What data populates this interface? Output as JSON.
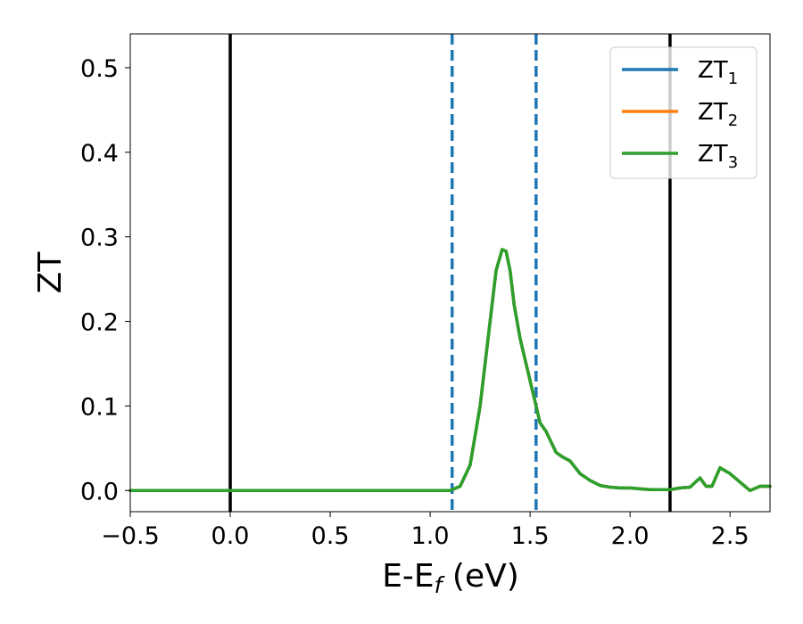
{
  "chart_data": {
    "type": "line",
    "xlabel": "E-E",
    "xlabel_sub": "f",
    "xlabel_unit": " (eV)",
    "ylabel": "ZT",
    "xlim": [
      -0.5,
      2.7
    ],
    "ylim": [
      -0.025,
      0.54
    ],
    "grid": false,
    "legend_position": "top-right",
    "xticks": [
      -0.5,
      0.0,
      0.5,
      1.0,
      1.5,
      2.0,
      2.5
    ],
    "xtick_labels": [
      "−0.5",
      "0.0",
      "0.5",
      "1.0",
      "1.5",
      "2.0",
      "2.5"
    ],
    "yticks": [
      0.0,
      0.1,
      0.2,
      0.3,
      0.4,
      0.5
    ],
    "ytick_labels": [
      "0.0",
      "0.1",
      "0.2",
      "0.3",
      "0.4",
      "0.5"
    ],
    "vlines": [
      {
        "x": 0.0,
        "style": "solid",
        "color": "#000000"
      },
      {
        "x": 2.2,
        "style": "solid",
        "color": "#000000"
      },
      {
        "x": 1.11,
        "style": "dashed",
        "color": "#1f77b4"
      },
      {
        "x": 1.53,
        "style": "dashed",
        "color": "#1f77b4"
      }
    ],
    "x": [
      -0.5,
      0.0,
      0.5,
      1.0,
      1.1,
      1.15,
      1.2,
      1.25,
      1.3,
      1.33,
      1.36,
      1.38,
      1.4,
      1.42,
      1.45,
      1.48,
      1.52,
      1.55,
      1.58,
      1.6,
      1.63,
      1.66,
      1.7,
      1.75,
      1.8,
      1.85,
      1.9,
      1.95,
      2.0,
      2.05,
      2.1,
      2.15,
      2.2,
      2.25,
      2.3,
      2.35,
      2.38,
      2.41,
      2.45,
      2.5,
      2.55,
      2.6,
      2.65,
      2.7
    ],
    "series": [
      {
        "name": "ZT",
        "name_sub": "1",
        "color": "#1f77b4",
        "values": [
          0,
          0,
          0,
          0,
          0.0,
          0.005,
          0.03,
          0.1,
          0.2,
          0.26,
          0.285,
          0.283,
          0.26,
          0.22,
          0.18,
          0.15,
          0.11,
          0.08,
          0.07,
          0.06,
          0.045,
          0.04,
          0.035,
          0.02,
          0.012,
          0.006,
          0.004,
          0.003,
          0.003,
          0.002,
          0.001,
          0.001,
          0.001,
          0.003,
          0.004,
          0.015,
          0.005,
          0.005,
          0.027,
          0.02,
          0.01,
          0.0,
          0.005,
          0.005
        ]
      },
      {
        "name": "ZT",
        "name_sub": "2",
        "color": "#ff7f0e",
        "values": [
          0,
          0,
          0,
          0,
          0.0,
          0.005,
          0.03,
          0.1,
          0.2,
          0.26,
          0.285,
          0.283,
          0.26,
          0.22,
          0.18,
          0.15,
          0.11,
          0.08,
          0.07,
          0.06,
          0.045,
          0.04,
          0.035,
          0.02,
          0.012,
          0.006,
          0.004,
          0.003,
          0.003,
          0.002,
          0.001,
          0.001,
          0.001,
          0.003,
          0.004,
          0.015,
          0.005,
          0.005,
          0.027,
          0.02,
          0.01,
          0.0,
          0.005,
          0.005
        ]
      },
      {
        "name": "ZT",
        "name_sub": "3",
        "color": "#2ca02c",
        "values": [
          0,
          0,
          0,
          0,
          0.0,
          0.005,
          0.03,
          0.1,
          0.2,
          0.26,
          0.285,
          0.283,
          0.26,
          0.22,
          0.18,
          0.15,
          0.11,
          0.08,
          0.07,
          0.06,
          0.045,
          0.04,
          0.035,
          0.02,
          0.012,
          0.006,
          0.004,
          0.003,
          0.003,
          0.002,
          0.001,
          0.001,
          0.001,
          0.003,
          0.004,
          0.015,
          0.005,
          0.005,
          0.027,
          0.02,
          0.01,
          0.0,
          0.005,
          0.005
        ]
      }
    ]
  }
}
